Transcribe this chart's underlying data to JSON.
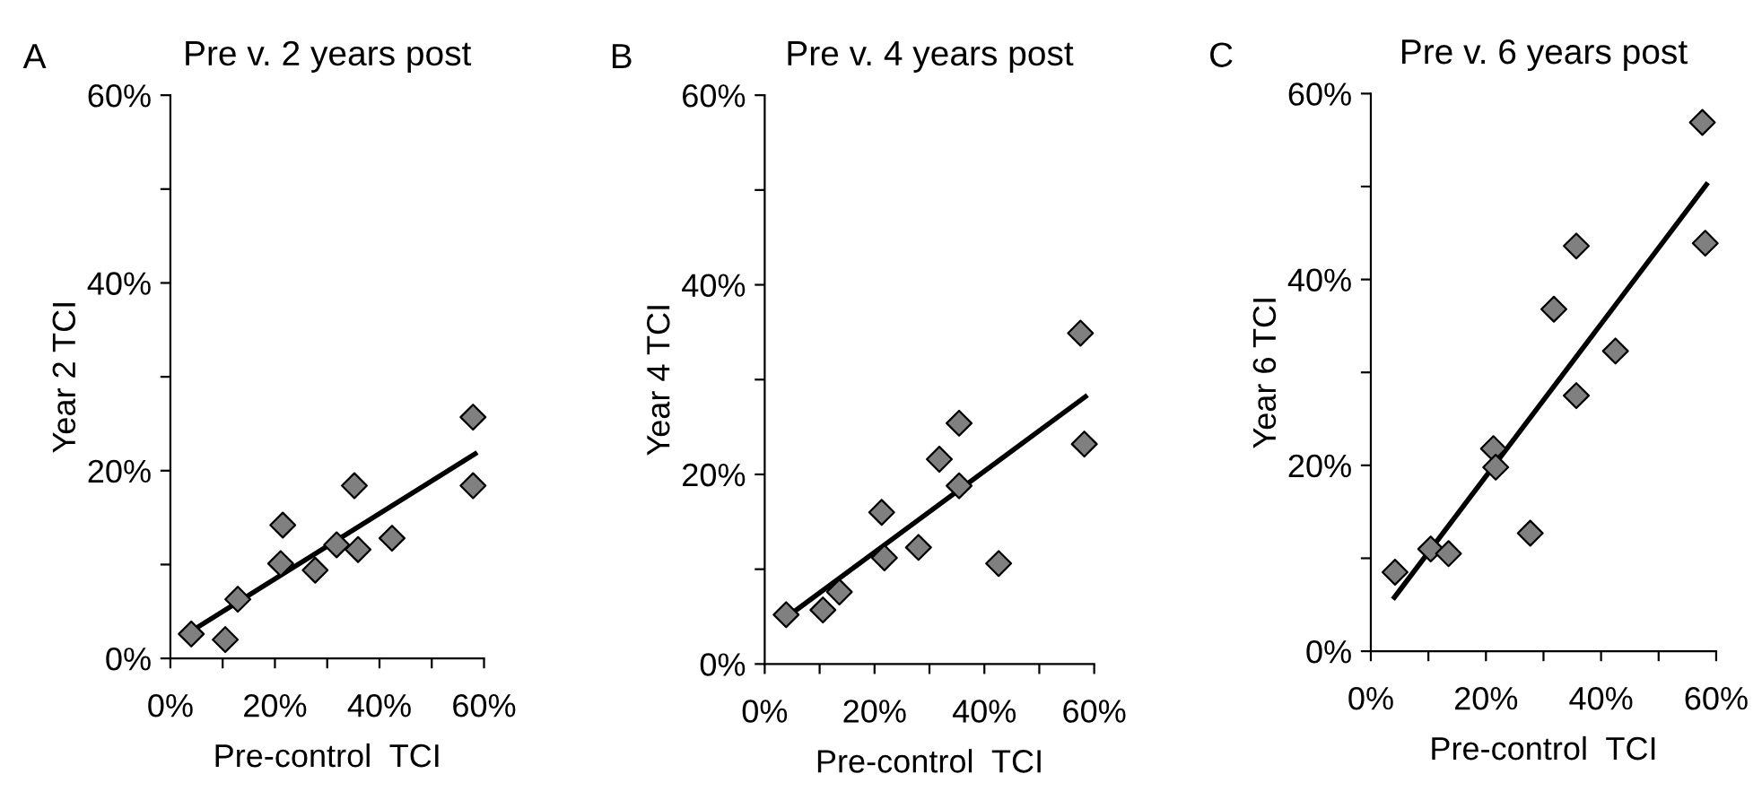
{
  "chart_data": [
    {
      "type": "scatter",
      "title": "Pre v. 2 years post",
      "annotations": [
        "A"
      ],
      "xlabel": "Pre-control  TCI",
      "ylabel": "Year 2 TCI",
      "marker": "diamond",
      "grid": false,
      "legend": false,
      "xlim": [
        0,
        60
      ],
      "ylim": [
        0,
        60
      ],
      "xticks": [
        {
          "value": 0,
          "label": "0%"
        },
        {
          "value": 10,
          "label": null
        },
        {
          "value": 20,
          "label": "20%"
        },
        {
          "value": 30,
          "label": null
        },
        {
          "value": 40,
          "label": "40%"
        },
        {
          "value": 50,
          "label": null
        },
        {
          "value": 60,
          "label": "60%"
        }
      ],
      "yticks": [
        {
          "value": 0,
          "label": "0%"
        },
        {
          "value": 10,
          "label": null
        },
        {
          "value": 20,
          "label": "20%"
        },
        {
          "value": 30,
          "label": null
        },
        {
          "value": 40,
          "label": "40%"
        },
        {
          "value": 50,
          "label": null
        },
        {
          "value": 60,
          "label": "60%"
        }
      ],
      "series": [
        {
          "color": "#808080",
          "x": [
            4.0,
            10.5,
            12.9,
            21.5,
            21.1,
            27.7,
            31.8,
            35.2,
            35.9,
            42.4,
            57.9,
            57.9
          ],
          "values": [
            2.6,
            2.0,
            6.3,
            14.2,
            10.1,
            9.4,
            12.1,
            18.4,
            11.6,
            12.8,
            25.7,
            18.4
          ]
        },
        {
          "type": "line",
          "color": "#000000",
          "marker": "none",
          "x": [
            4.0,
            58.3
          ],
          "values": [
            2.9,
            21.8
          ]
        }
      ]
    },
    {
      "type": "scatter",
      "title": "Pre v. 4 years post",
      "annotations": [
        "B"
      ],
      "xlabel": "Pre-control  TCI",
      "ylabel": "Year 4 TCI",
      "marker": "diamond",
      "grid": false,
      "legend": false,
      "xlim": [
        0,
        60
      ],
      "ylim": [
        0,
        60
      ],
      "xticks": [
        {
          "value": 0,
          "label": "0%"
        },
        {
          "value": 10,
          "label": null
        },
        {
          "value": 20,
          "label": "20%"
        },
        {
          "value": 30,
          "label": null
        },
        {
          "value": 40,
          "label": "40%"
        },
        {
          "value": 50,
          "label": null
        },
        {
          "value": 60,
          "label": "60%"
        }
      ],
      "yticks": [
        {
          "value": 0,
          "label": "0%"
        },
        {
          "value": 10,
          "label": null
        },
        {
          "value": 20,
          "label": "20%"
        },
        {
          "value": 30,
          "label": null
        },
        {
          "value": 40,
          "label": "40%"
        },
        {
          "value": 50,
          "label": null
        },
        {
          "value": 60,
          "label": "60%"
        }
      ],
      "series": [
        {
          "color": "#808080",
          "x": [
            3.9,
            10.6,
            13.6,
            21.3,
            21.8,
            28.0,
            31.8,
            35.4,
            35.4,
            42.6,
            57.5,
            58.2
          ],
          "values": [
            5.2,
            5.7,
            7.6,
            16.0,
            11.2,
            12.3,
            21.6,
            25.4,
            18.8,
            10.6,
            34.9,
            23.2
          ]
        },
        {
          "type": "line",
          "color": "#000000",
          "marker": "none",
          "x": [
            3.9,
            58.4
          ],
          "values": [
            4.9,
            28.2
          ]
        }
      ]
    },
    {
      "type": "scatter",
      "title": "Pre v. 6 years post",
      "annotations": [
        "C"
      ],
      "xlabel": "Pre-control  TCI",
      "ylabel": "Year 6 TCI",
      "marker": "diamond",
      "grid": false,
      "legend": false,
      "xlim": [
        0,
        60
      ],
      "ylim": [
        0,
        60
      ],
      "xticks": [
        {
          "value": 0,
          "label": "0%"
        },
        {
          "value": 10,
          "label": null
        },
        {
          "value": 20,
          "label": "20%"
        },
        {
          "value": 30,
          "label": null
        },
        {
          "value": 40,
          "label": "40%"
        },
        {
          "value": 50,
          "label": null
        },
        {
          "value": 60,
          "label": "60%"
        }
      ],
      "yticks": [
        {
          "value": 0,
          "label": "0%"
        },
        {
          "value": 10,
          "label": null
        },
        {
          "value": 20,
          "label": "20%"
        },
        {
          "value": 30,
          "label": null
        },
        {
          "value": 40,
          "label": "40%"
        },
        {
          "value": 50,
          "label": null
        },
        {
          "value": 60,
          "label": "60%"
        }
      ],
      "series": [
        {
          "color": "#808080",
          "x": [
            4.2,
            10.4,
            13.5,
            21.3,
            21.7,
            27.7,
            31.8,
            35.7,
            35.7,
            42.5,
            57.6,
            58.1
          ],
          "values": [
            8.5,
            11.0,
            10.5,
            21.8,
            19.8,
            12.7,
            36.8,
            43.6,
            27.5,
            32.3,
            56.9,
            43.9
          ]
        },
        {
          "type": "line",
          "color": "#000000",
          "marker": "none",
          "x": [
            4.1,
            58.3
          ],
          "values": [
            5.8,
            50.2
          ]
        }
      ]
    }
  ]
}
